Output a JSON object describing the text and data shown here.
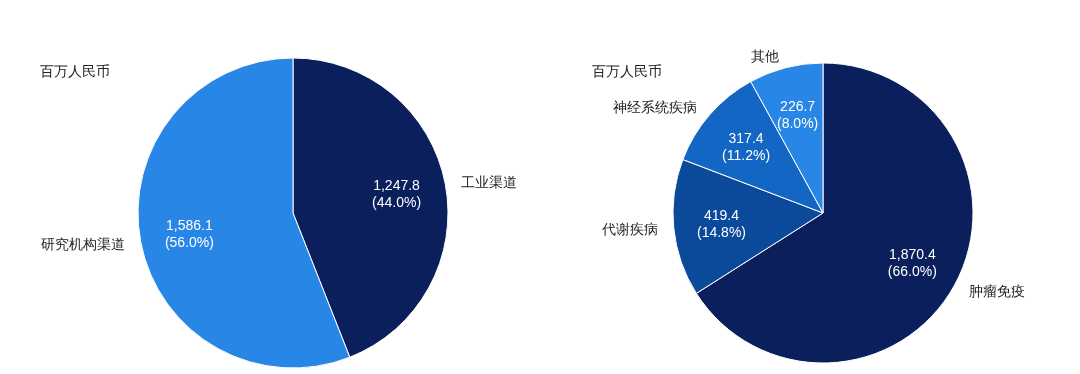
{
  "chart_data": [
    {
      "type": "pie",
      "title": "百万人民币",
      "categories": [
        "工业渠道",
        "研究机构渠道"
      ],
      "values": [
        1247.8,
        1586.1
      ],
      "colors": [
        "#0a1f5c",
        "#2886e6"
      ],
      "value_labels": [
        "1,247.8\n(44.0%)",
        "1,586.1\n(56.0%)"
      ]
    },
    {
      "type": "pie",
      "title": "百万人民币",
      "categories": [
        "肿瘤免疫",
        "代谢疾病",
        "神经系统疾病",
        "其他"
      ],
      "values": [
        1870.4,
        419.4,
        317.4,
        226.7
      ],
      "colors": [
        "#0a1f5c",
        "#0b4a9a",
        "#1466c4",
        "#2886e6"
      ],
      "value_labels": [
        "1,870.4\n(66.0%)",
        "419.4\n(14.8%)",
        "317.4\n(11.2%)",
        "226.7\n(8.0%)"
      ]
    }
  ]
}
